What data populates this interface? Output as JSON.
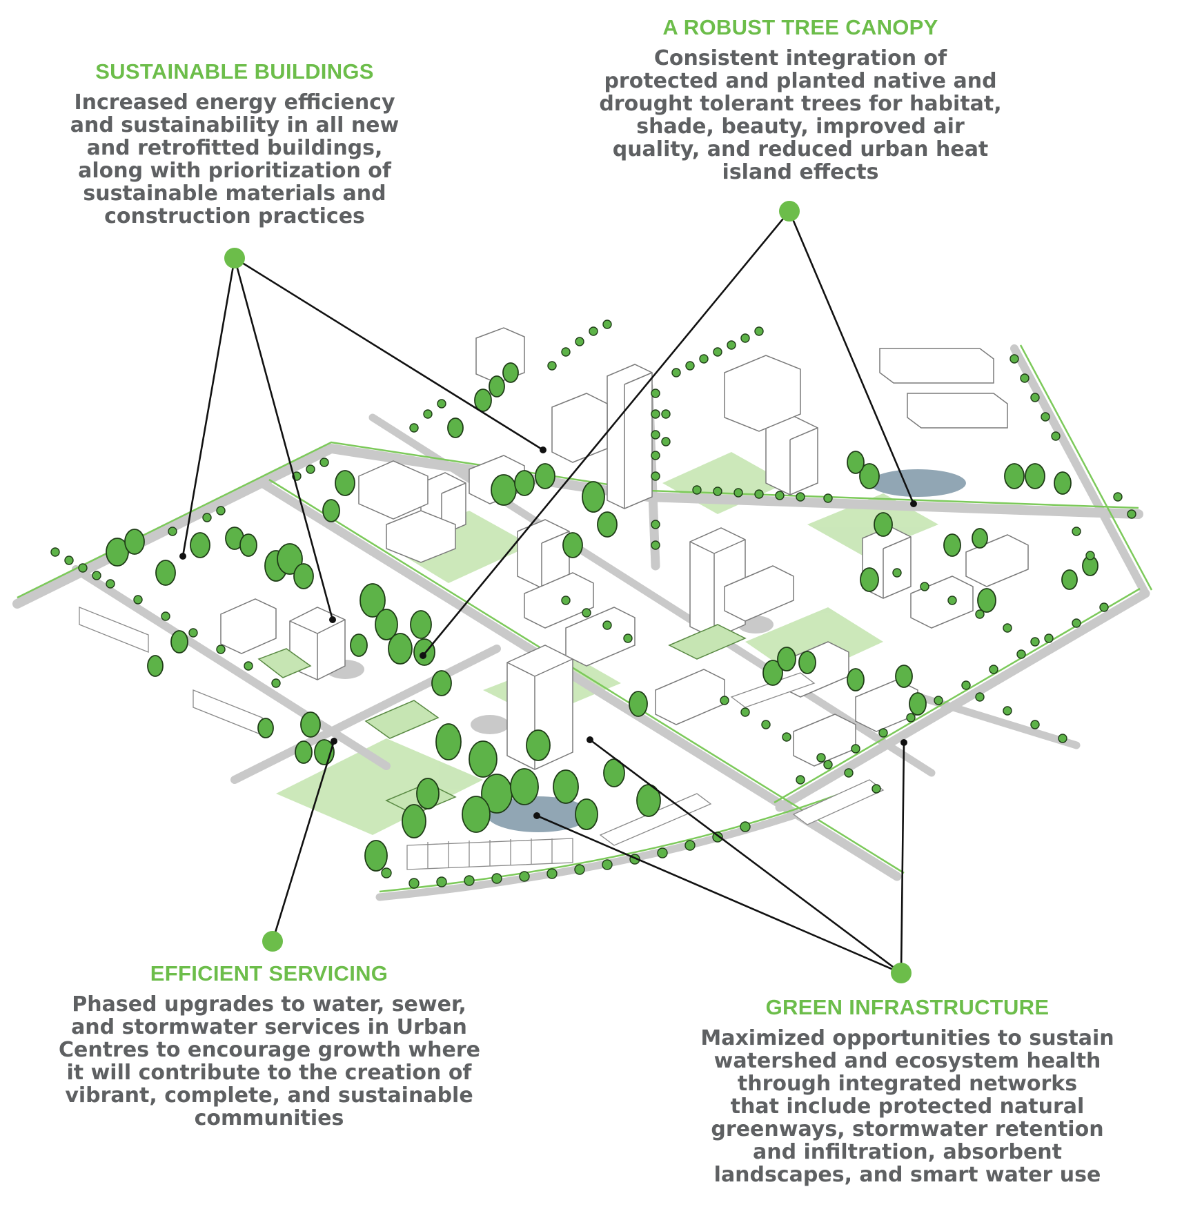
{
  "colors": {
    "accent_green": "#6cbd4a",
    "body_gray": "#5e6062",
    "tree_fill": "#5db348",
    "tree_stroke": "#1f3d17",
    "green_space": "#c6e5b3",
    "road": "#c9c9c9",
    "water": "#7e96a7",
    "leader_line": "#111111"
  },
  "callouts": {
    "sustainable_buildings": {
      "heading": "SUSTAINABLE BUILDINGS",
      "lines": [
        "Increased energy efficiency",
        "and sustainability in all new",
        "and retrofitted buildings,",
        "along with prioritization of",
        "sustainable materials and",
        "construction practices"
      ]
    },
    "tree_canopy": {
      "heading": "A ROBUST TREE CANOPY",
      "lines": [
        "Consistent integration of",
        "protected and planted native and",
        "drought tolerant trees for habitat,",
        "shade, beauty, improved air",
        "quality, and reduced urban heat",
        "island effects"
      ]
    },
    "efficient_servicing": {
      "heading": "EFFICIENT SERVICING",
      "lines": [
        "Phased upgrades to water, sewer,",
        "and stormwater services in Urban",
        "Centres to encourage growth where",
        "it will contribute to the creation of",
        "vibrant, complete, and sustainable",
        "communities"
      ]
    },
    "green_infrastructure": {
      "heading": "GREEN INFRASTRUCTURE",
      "lines": [
        "Maximized opportunities to sustain",
        "watershed and ecosystem health",
        "through integrated networks",
        "that include protected natural",
        "greenways, stormwater retention",
        "and infiltration, absorbent",
        "landscapes, and smart water use"
      ]
    }
  }
}
